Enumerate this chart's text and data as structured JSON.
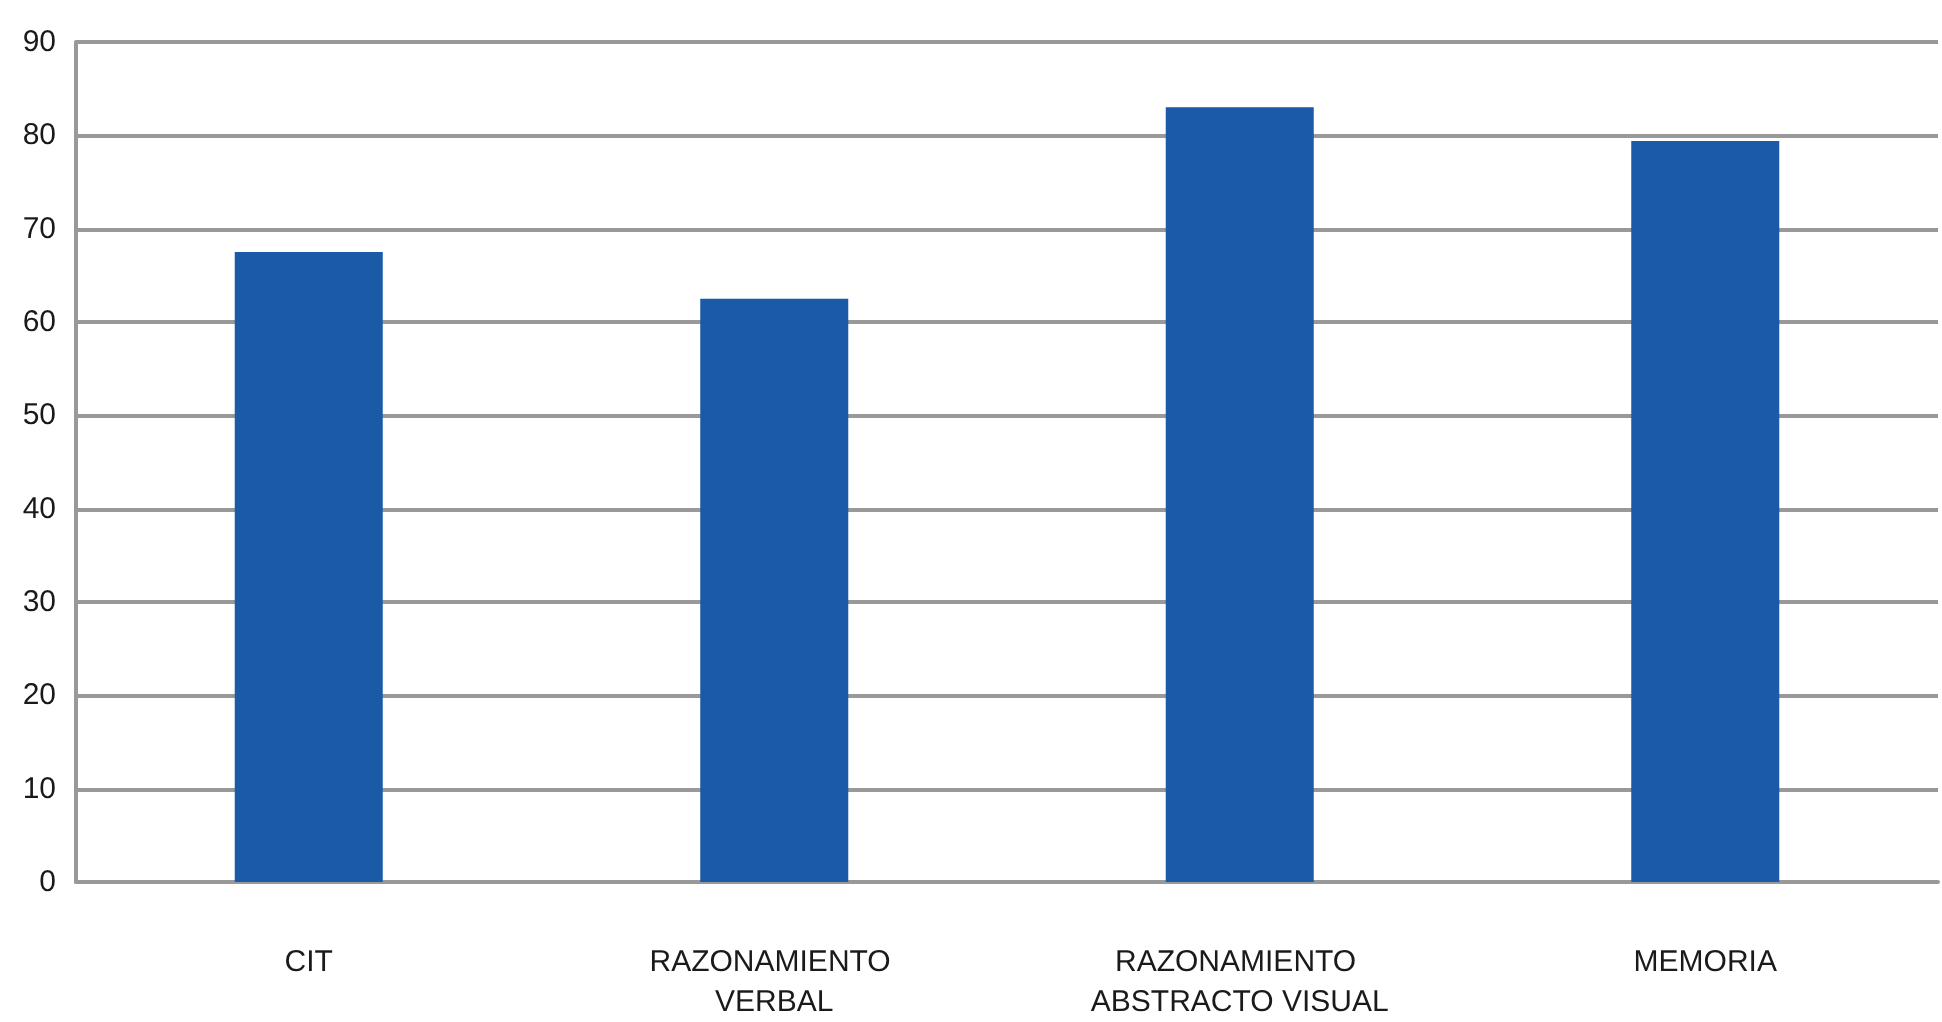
{
  "chart_data": {
    "type": "bar",
    "categories": [
      "CIT",
      "RAZONAMIENTO VERBAL",
      "RAZONAMIENTO ABSTRACTO VISUAL",
      "MEMORIA"
    ],
    "values": [
      67.5,
      62.5,
      83,
      79.4
    ],
    "color": "#1a5aa6",
    "ylim": [
      0,
      90
    ],
    "yticks": [
      0,
      10,
      20,
      30,
      40,
      50,
      60,
      70,
      80,
      90
    ],
    "grid": "y"
  }
}
